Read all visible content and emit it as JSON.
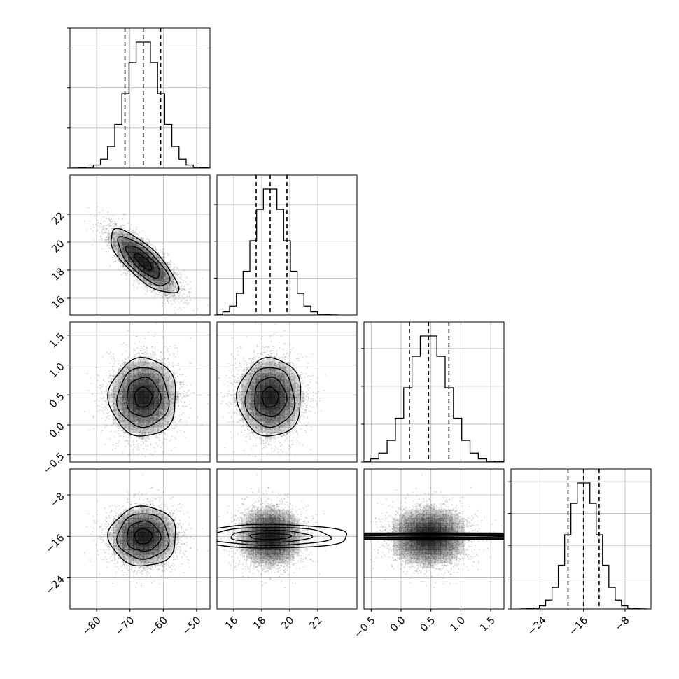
{
  "chart_data": {
    "type": "corner",
    "grid": true,
    "colors": {
      "line": "#000000",
      "grid": "#b0b0b0",
      "points": "#7f7f7f",
      "density": "#000000"
    },
    "params": [
      {
        "name": "",
        "mean": -66,
        "std": 5.1,
        "range": [
          -88,
          -46
        ],
        "ticks": [
          -80,
          -70,
          -60,
          -50
        ],
        "tick_labels": [
          "−80",
          "−70",
          "−60",
          "−50"
        ],
        "quantiles": [
          -71.5,
          -66,
          -60.8
        ]
      },
      {
        "name": "",
        "mean": 18.6,
        "std": 1.15,
        "range": [
          14.8,
          24.8
        ],
        "ticks": [
          16,
          18,
          20,
          22
        ],
        "tick_labels": [
          "16",
          "18",
          "20",
          "22"
        ],
        "quantiles": [
          17.6,
          18.6,
          19.8
        ]
      },
      {
        "name": "",
        "mean": 0.46,
        "std": 0.33,
        "range": [
          -0.62,
          1.72
        ],
        "ticks": [
          -0.5,
          0.0,
          0.5,
          1.0,
          1.5
        ],
        "tick_labels": [
          "−0.5",
          "0.0",
          "0.5",
          "1.0",
          "1.5"
        ],
        "quantiles": [
          0.14,
          0.46,
          0.8
        ]
      },
      {
        "name": "",
        "mean": -16,
        "std": 2.9,
        "range": [
          -30,
          -3
        ],
        "ticks": [
          -24,
          -16,
          -8
        ],
        "tick_labels": [
          "−24",
          "−16",
          "−8"
        ],
        "quantiles": [
          -19,
          -16,
          -13
        ]
      }
    ],
    "correlations": [
      [
        0,
        1,
        -0.78
      ]
    ],
    "histogram": {
      "bins": 20,
      "yticks": [
        {
          "ticks": [
            0,
            1000,
            2000,
            3000,
            3500
          ],
          "max": 3500
        },
        {
          "ticks": [
            0,
            1000,
            2000,
            3000
          ],
          "max": 3800
        },
        {
          "ticks": [
            0,
            1000,
            2000,
            3000
          ],
          "max": 3700
        },
        {
          "ticks": [
            0,
            1000,
            2000,
            3000,
            4000
          ],
          "max": 4400
        }
      ]
    },
    "contour_levels": [
      0.12,
      0.39,
      0.68,
      0.86
    ]
  }
}
